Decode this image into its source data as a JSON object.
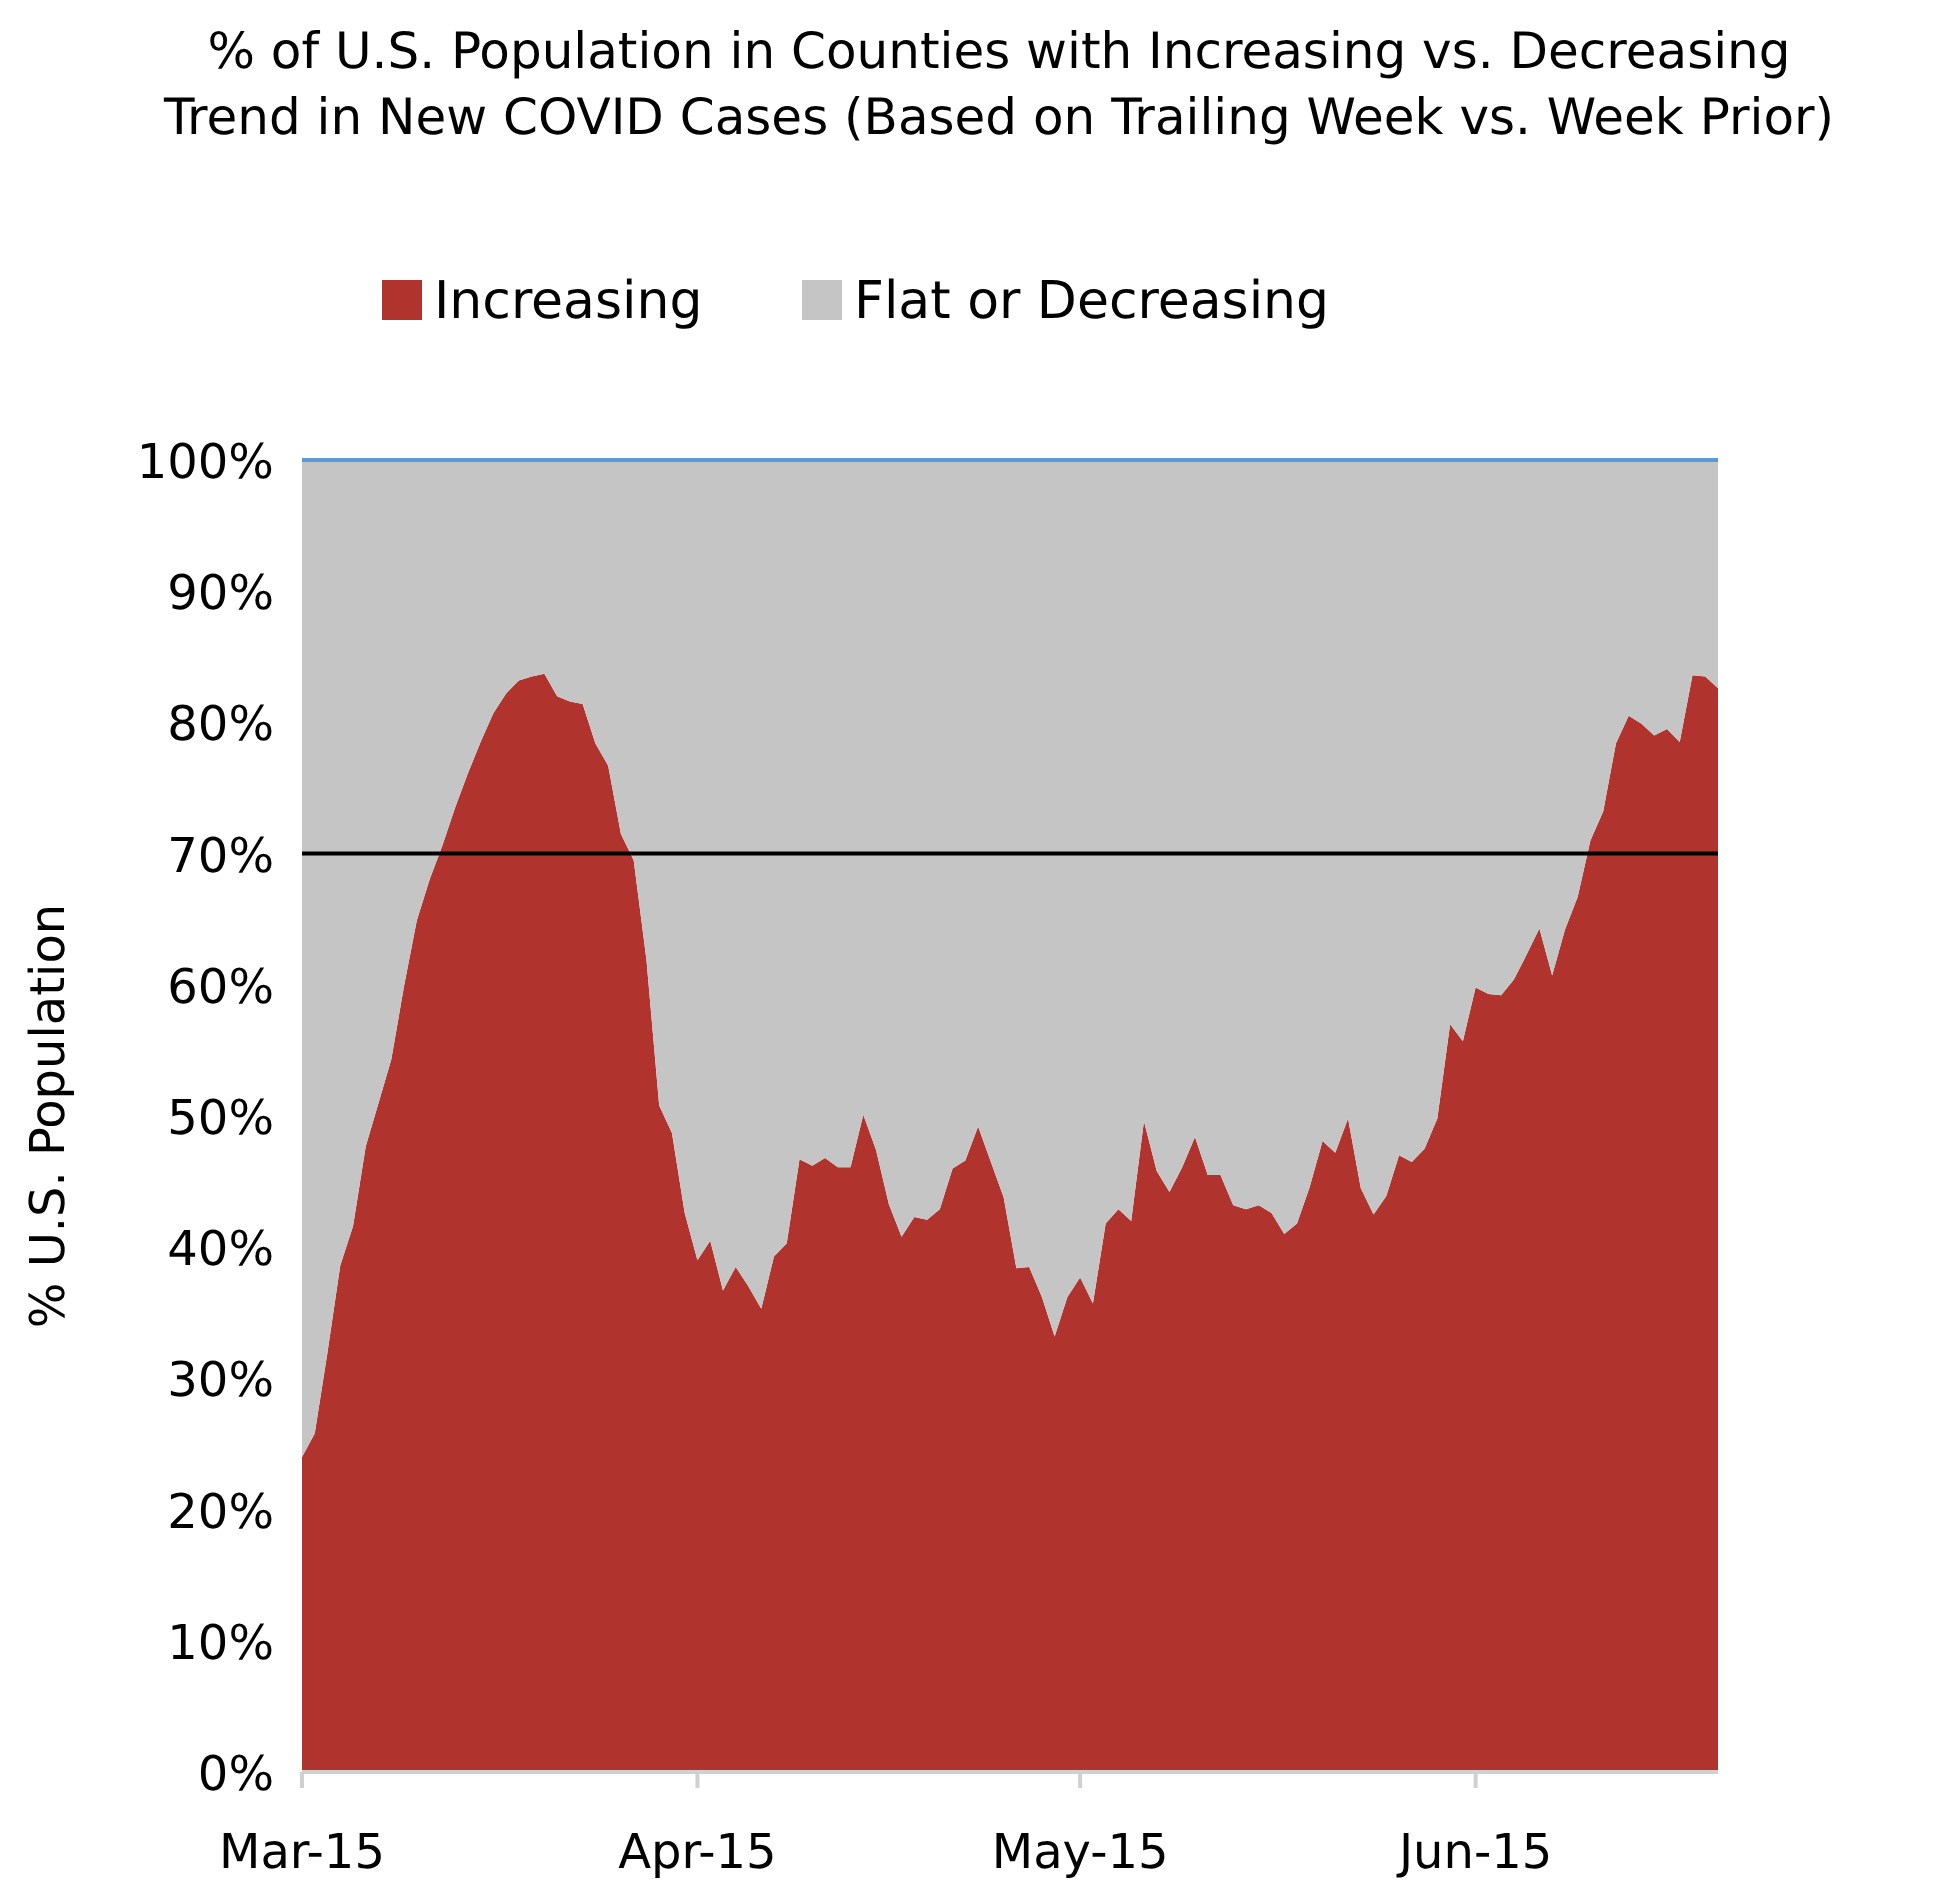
{
  "chart_data": {
    "type": "area",
    "stacked": true,
    "title": "% of U.S. Population in Counties with Increasing vs. Decreasing Trend in New COVID Cases (Based on Trailing Week vs. Week Prior)",
    "ylabel": "% U.S. Population",
    "legend": "top",
    "grid": false,
    "x": [
      "--03-15",
      "--03-16",
      "--03-17",
      "--03-18",
      "--03-19",
      "--03-20",
      "--03-21",
      "--03-22",
      "--03-23",
      "--03-24",
      "--03-25",
      "--03-26",
      "--03-27",
      "--03-28",
      "--03-29",
      "--03-30",
      "--03-31",
      "--04-01",
      "--04-02",
      "--04-03",
      "--04-04",
      "--04-05",
      "--04-06",
      "--04-07",
      "--04-08",
      "--04-09",
      "--04-10",
      "--04-11",
      "--04-12",
      "--04-13",
      "--04-14",
      "--04-15",
      "--04-16",
      "--04-17",
      "--04-18",
      "--04-19",
      "--04-20",
      "--04-21",
      "--04-22",
      "--04-23",
      "--04-24",
      "--04-25",
      "--04-26",
      "--04-27",
      "--04-28",
      "--04-29",
      "--04-30",
      "--05-01",
      "--05-02",
      "--05-03",
      "--05-04",
      "--05-05",
      "--05-06",
      "--05-07",
      "--05-08",
      "--05-09",
      "--05-10",
      "--05-11",
      "--05-12",
      "--05-13",
      "--05-14",
      "--05-15",
      "--05-16",
      "--05-17",
      "--05-18",
      "--05-19",
      "--05-20",
      "--05-21",
      "--05-22",
      "--05-23",
      "--05-24",
      "--05-25",
      "--05-26",
      "--05-27",
      "--05-28",
      "--05-29",
      "--05-30",
      "--05-31",
      "--06-01",
      "--06-02",
      "--06-03",
      "--06-04",
      "--06-05",
      "--06-06",
      "--06-07",
      "--06-08",
      "--06-09",
      "--06-10",
      "--06-11",
      "--06-12",
      "--06-13",
      "--06-14",
      "--06-15",
      "--06-16",
      "--06-17",
      "--06-18",
      "--06-19",
      "--06-20",
      "--06-21",
      "--06-22",
      "--06-23",
      "--06-24",
      "--06-25",
      "--06-26",
      "--06-27",
      "--06-28",
      "--06-29",
      "--06-30",
      "--07-01",
      "--07-02",
      "--07-03",
      "--07-04"
    ],
    "series": [
      {
        "name": "Increasing",
        "color": "#b0332e",
        "values": [
          24.0,
          25.8,
          32.0,
          38.6,
          41.6,
          47.7,
          51.0,
          54.3,
          59.9,
          64.9,
          68.0,
          70.6,
          73.5,
          76.1,
          78.5,
          80.7,
          82.2,
          83.2,
          83.5,
          83.7,
          82.0,
          81.6,
          81.4,
          78.4,
          76.7,
          71.5,
          69.5,
          61.9,
          50.8,
          48.7,
          42.6,
          39.0,
          40.5,
          36.7,
          38.5,
          37.0,
          35.3,
          39.3,
          40.3,
          46.7,
          46.2,
          46.8,
          46.1,
          46.1,
          50.1,
          47.4,
          43.3,
          40.8,
          42.3,
          42.1,
          42.9,
          46.0,
          46.6,
          49.2,
          46.5,
          43.8,
          38.4,
          38.5,
          36.2,
          33.2,
          36.2,
          37.7,
          35.7,
          41.8,
          42.9,
          42.0,
          49.6,
          45.8,
          44.2,
          46.1,
          48.4,
          45.5,
          45.5,
          43.2,
          42.9,
          43.2,
          42.6,
          41.0,
          41.8,
          44.6,
          48.1,
          47.2,
          49.8,
          44.5,
          42.5,
          43.9,
          47.0,
          46.5,
          47.5,
          49.8,
          57.0,
          55.7,
          59.8,
          59.3,
          59.2,
          60.4,
          62.3,
          64.3,
          60.7,
          64.2,
          66.7,
          71.0,
          73.2,
          78.4,
          80.5,
          79.9,
          79.0,
          79.5,
          78.5,
          83.6,
          83.5,
          82.6
        ]
      },
      {
        "name": "Flat or Decreasing",
        "color": "#c5c5c5",
        "values": [
          76.0,
          74.2,
          68.0,
          61.4,
          58.4,
          52.3,
          49.0,
          45.7,
          40.1,
          35.1,
          32.0,
          29.4,
          26.5,
          23.9,
          21.5,
          19.3,
          17.8,
          16.8,
          16.5,
          16.3,
          18.0,
          18.4,
          18.6,
          21.6,
          23.3,
          28.5,
          30.5,
          38.1,
          49.2,
          51.3,
          57.4,
          61.0,
          59.5,
          63.3,
          61.5,
          63.0,
          64.7,
          60.7,
          59.7,
          53.3,
          53.8,
          53.2,
          53.9,
          53.9,
          49.9,
          52.6,
          56.7,
          59.2,
          57.7,
          57.9,
          57.1,
          54.0,
          53.4,
          50.8,
          53.5,
          56.2,
          61.6,
          61.5,
          63.8,
          66.8,
          63.8,
          62.3,
          64.3,
          58.2,
          57.1,
          58.0,
          50.4,
          54.2,
          55.8,
          53.9,
          51.6,
          54.5,
          54.5,
          56.8,
          57.1,
          56.8,
          57.4,
          59.0,
          58.2,
          55.4,
          51.9,
          52.8,
          50.2,
          55.5,
          57.5,
          56.1,
          53.0,
          53.5,
          52.5,
          50.2,
          43.0,
          44.3,
          40.2,
          40.7,
          40.8,
          39.6,
          37.7,
          35.7,
          39.3,
          35.8,
          33.3,
          29.0,
          26.8,
          21.6,
          19.5,
          20.1,
          21.0,
          20.5,
          21.5,
          16.4,
          16.5,
          17.4
        ]
      }
    ],
    "xlim": [
      "--03-15",
      "--07-04"
    ],
    "xticks": [
      {
        "value": "--03-15",
        "label": "Mar-15"
      },
      {
        "value": "--04-15",
        "label": "Apr-15"
      },
      {
        "value": "--05-15",
        "label": "May-15"
      },
      {
        "value": "--06-15",
        "label": "Jun-15"
      }
    ],
    "ylim": [
      0,
      100
    ],
    "yticks": [
      {
        "value": 0,
        "label": "0%"
      },
      {
        "value": 10,
        "label": "10%"
      },
      {
        "value": 20,
        "label": "20%"
      },
      {
        "value": 30,
        "label": "30%"
      },
      {
        "value": 40,
        "label": "40%"
      },
      {
        "value": 50,
        "label": "50%"
      },
      {
        "value": 60,
        "label": "60%"
      },
      {
        "value": 70,
        "label": "70%"
      },
      {
        "value": 80,
        "label": "80%"
      },
      {
        "value": 90,
        "label": "90%"
      },
      {
        "value": 100,
        "label": "100%"
      }
    ],
    "ref_lines": [
      {
        "axis": "y",
        "value": 70,
        "color": "#000000"
      },
      {
        "axis": "y",
        "value": 100,
        "color": "#5b9bd5"
      }
    ]
  }
}
